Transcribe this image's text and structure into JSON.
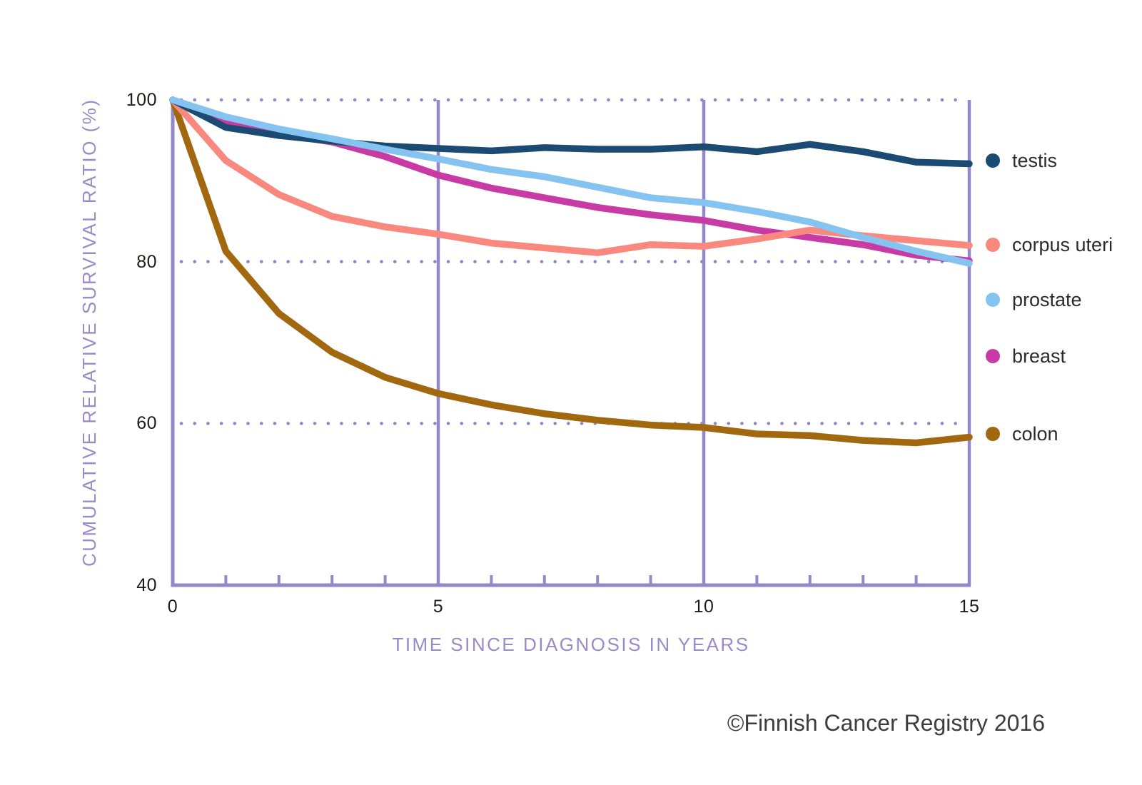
{
  "chart_data": {
    "type": "line",
    "title": "",
    "xlabel": "TIME SINCE DIAGNOSIS IN YEARS",
    "ylabel": "CUMULATIVE RELATIVE SURVIVAL RATIO (%)",
    "xlim": [
      0,
      15
    ],
    "ylim": [
      40,
      100
    ],
    "x_major_ticks": [
      0,
      5,
      10,
      15
    ],
    "x_minor_ticks": [
      1,
      2,
      3,
      4,
      6,
      7,
      8,
      9,
      11,
      12,
      13,
      14
    ],
    "y_ticks": [
      100,
      80,
      60,
      40
    ],
    "grid": {
      "dotted_horizontal_at": [
        100,
        80,
        60
      ],
      "solid_vertical_at": [
        5,
        10
      ]
    },
    "legend_position": "right",
    "x": [
      0,
      1,
      2,
      3,
      4,
      5,
      6,
      7,
      8,
      9,
      10,
      11,
      12,
      13,
      14,
      15
    ],
    "series": [
      {
        "name": "testis",
        "color": "#1b4b73",
        "values": [
          100,
          96.6,
          95.6,
          94.9,
          94.3,
          94.0,
          93.7,
          94.1,
          93.9,
          93.9,
          94.2,
          93.6,
          94.5,
          93.6,
          92.3,
          92.1
        ]
      },
      {
        "name": "corpus uteri",
        "color": "#f9897f",
        "values": [
          100,
          92.5,
          88.3,
          85.6,
          84.3,
          83.4,
          82.3,
          81.7,
          81.1,
          82.1,
          81.9,
          82.8,
          83.9,
          83.2,
          82.6,
          82.0
        ]
      },
      {
        "name": "prostate",
        "color": "#85c3f0",
        "values": [
          100,
          97.9,
          96.4,
          95.2,
          93.9,
          92.7,
          91.4,
          90.5,
          89.2,
          87.9,
          87.3,
          86.2,
          84.9,
          83.0,
          81.3,
          79.8
        ]
      },
      {
        "name": "breast",
        "color": "#c93ba4",
        "values": [
          100,
          97.2,
          95.8,
          94.8,
          93.0,
          90.7,
          89.1,
          87.9,
          86.7,
          85.8,
          85.1,
          83.9,
          83.0,
          82.1,
          80.8,
          80.1
        ]
      },
      {
        "name": "colon",
        "color": "#a2680f",
        "values": [
          100,
          81.3,
          73.6,
          68.8,
          65.7,
          63.7,
          62.3,
          61.2,
          60.4,
          59.8,
          59.5,
          58.7,
          58.5,
          57.9,
          57.6,
          58.3
        ]
      }
    ],
    "z_order": [
      "colon",
      "breast",
      "corpus uteri",
      "testis",
      "prostate"
    ]
  },
  "footer": {
    "credit": "©Finnish Cancer Registry 2016"
  },
  "colors": {
    "axis": "#9488c9",
    "dotted_grid": "#8f85c8",
    "axis_title_text": "#988cc8",
    "tick_label_text": "#1d1d1b",
    "legend_text": "#2b2b2b",
    "credit_text": "#3d3d3d",
    "background": "#ffffff"
  }
}
